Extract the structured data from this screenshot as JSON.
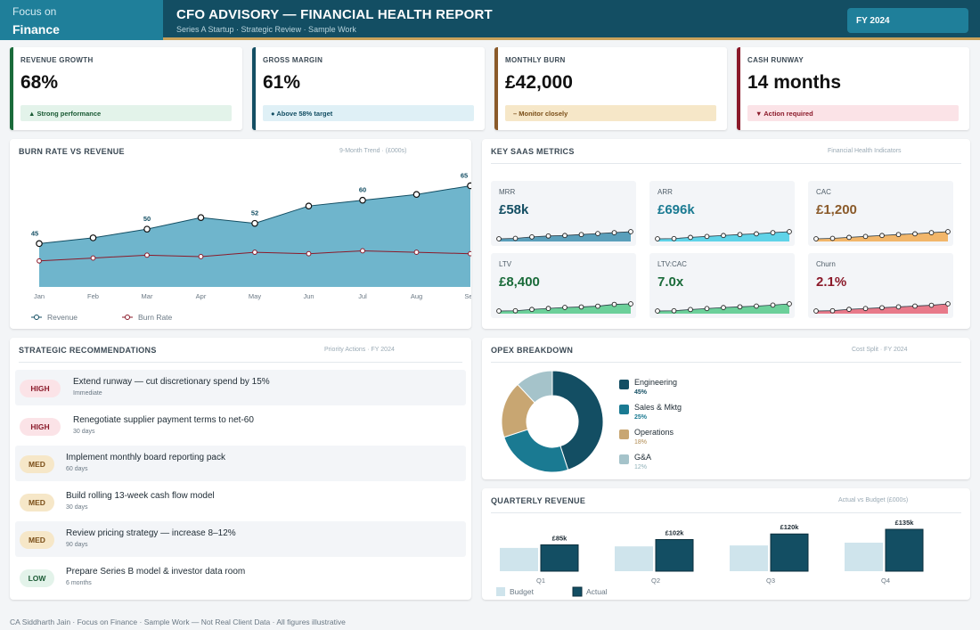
{
  "brand": {
    "top": "Focus on",
    "name": "Finance"
  },
  "header": {
    "title": "CFO ADVISORY — FINANCIAL HEALTH REPORT",
    "subtitle": "Series A Startup  ·  Strategic Review  ·  Sample Work",
    "fy_label": "FY 2024"
  },
  "kpis": [
    {
      "label": "REVENUE GROWTH",
      "value": "68%",
      "note": "▲  Strong performance",
      "accent": "#1a6b3a",
      "note_bg": "#e3f3ea",
      "note_color": "#1a5a34"
    },
    {
      "label": "GROSS MARGIN",
      "value": "61%",
      "note": "●  Above 58% target",
      "accent": "#134e63",
      "note_bg": "#dff0f6",
      "note_color": "#134e63"
    },
    {
      "label": "MONTHLY BURN",
      "value": "£42,000",
      "note": "–  Monitor closely",
      "accent": "#8a5a2a",
      "note_bg": "#f6e7c8",
      "note_color": "#7a4e18"
    },
    {
      "label": "CASH RUNWAY",
      "value": "14 months",
      "note": "▼  Action required",
      "accent": "#8b1a2a",
      "note_bg": "#fbe3e7",
      "note_color": "#8b1a2a"
    }
  ],
  "burn_panel": {
    "title": "BURN RATE VS REVENUE",
    "meta": "9-Month Trend  ·  (£000s)"
  },
  "chart_data": [
    {
      "type": "area",
      "title": "BURN RATE VS REVENUE",
      "x": [
        "Jan",
        "Feb",
        "Mar",
        "Apr",
        "May",
        "Jun",
        "Jul",
        "Aug",
        "Sep"
      ],
      "series": [
        {
          "name": "Revenue",
          "values": [
            45,
            47,
            50,
            54,
            52,
            58,
            60,
            62,
            65
          ],
          "color": "#6fb5cc"
        },
        {
          "name": "Burn Rate",
          "values": [
            39,
            40,
            41,
            40.5,
            42,
            41.5,
            42.5,
            42,
            41.5
          ],
          "color": "#8b1a2a"
        }
      ],
      "data_labels": {
        "Jan": "45",
        "Mar": "50",
        "May": "52",
        "Jul": "60",
        "Sep": "65"
      },
      "ylim": [
        30,
        67
      ],
      "legend": "bottom-left"
    },
    {
      "type": "pie",
      "title": "OPEX BREAKDOWN",
      "categories": [
        "Engineering",
        "Sales & Mktg",
        "Operations",
        "G&A"
      ],
      "values": [
        45,
        25,
        18,
        12
      ],
      "colors": [
        "#134e63",
        "#1a7a92",
        "#c8a672",
        "#a5c3ca"
      ]
    },
    {
      "type": "bar",
      "title": "QUARTERLY REVENUE",
      "categories": [
        "Q1",
        "Q2",
        "Q3",
        "Q4"
      ],
      "series": [
        {
          "name": "Budget",
          "values": [
            75,
            80,
            83,
            92
          ],
          "color": "#cfe4ec"
        },
        {
          "name": "Actual",
          "values": [
            85,
            102,
            120,
            135
          ],
          "color": "#134e63"
        }
      ],
      "data_labels": [
        "£85k",
        "£102k",
        "£120k",
        "£135k"
      ],
      "ylim": [
        0,
        150
      ],
      "legend": "bottom-left"
    }
  ],
  "saas_panel": {
    "title": "KEY SAAS METRICS",
    "meta": "Financial Health Indicators"
  },
  "metrics": [
    {
      "label": "MRR",
      "value": "£58k",
      "color": "#134e63",
      "spark": "#5a9fbb",
      "values": [
        1,
        1.2,
        1.8,
        2.2,
        2.4,
        2.8,
        3.2,
        3.6,
        4
      ]
    },
    {
      "label": "ARR",
      "value": "£696k",
      "color": "#1a7a92",
      "spark": "#5fd3e8",
      "values": [
        1,
        1.1,
        1.6,
        2,
        2.4,
        2.8,
        3.1,
        3.6,
        4
      ]
    },
    {
      "label": "CAC",
      "value": "£1,200",
      "color": "#8a5a2a",
      "spark": "#f2b66a",
      "values": [
        1,
        1.2,
        1.6,
        2,
        2.4,
        2.8,
        3.1,
        3.6,
        4
      ]
    },
    {
      "label": "LTV",
      "value": "£8,400",
      "color": "#1a6b3a",
      "spark": "#6cd09a",
      "values": [
        1,
        1.1,
        1.6,
        2,
        2.4,
        2.6,
        2.9,
        3.6,
        3.8
      ]
    },
    {
      "label": "LTV:CAC",
      "value": "7.0x",
      "color": "#1a6b3a",
      "spark": "#6cd09a",
      "values": [
        1,
        1.1,
        1.6,
        2,
        2.4,
        2.7,
        3,
        3.4,
        3.9
      ]
    },
    {
      "label": "Churn",
      "value": "2.1%",
      "color": "#8b1a2a",
      "spark": "#e87a8a",
      "values": [
        1,
        1.1,
        1.6,
        1.9,
        2.2,
        2.5,
        2.8,
        3.1,
        3.6
      ]
    }
  ],
  "rec_panel": {
    "title": "STRATEGIC RECOMMENDATIONS",
    "meta": "Priority Actions  ·  FY 2024"
  },
  "recommendations": [
    {
      "priority": "HIGH",
      "text": "Extend runway — cut discretionary spend by 15%",
      "timing": "Immediate"
    },
    {
      "priority": "HIGH",
      "text": "Renegotiate supplier payment terms to net-60",
      "timing": "30 days"
    },
    {
      "priority": "MED",
      "text": "Implement monthly board reporting pack",
      "timing": "60 days"
    },
    {
      "priority": "MED",
      "text": "Build rolling 13-week cash flow model",
      "timing": "30 days"
    },
    {
      "priority": "MED",
      "text": "Review pricing strategy — increase 8–12%",
      "timing": "90 days"
    },
    {
      "priority": "LOW",
      "text": "Prepare Series B model & investor data room",
      "timing": "6 months"
    }
  ],
  "priority_styles": {
    "HIGH": {
      "bg": "#fbe3e7",
      "color": "#8b1a2a"
    },
    "MED": {
      "bg": "#f6e7c8",
      "color": "#7a4e18"
    },
    "LOW": {
      "bg": "#e3f3ea",
      "color": "#1a5a34"
    }
  },
  "opex_panel": {
    "title": "OPEX BREAKDOWN",
    "meta": "Cost Split  ·  FY 2024"
  },
  "opex_legend": [
    {
      "name": "Engineering",
      "pct": "45%",
      "color": "#134e63",
      "pct_color": "#134e63"
    },
    {
      "name": "Sales & Mktg",
      "pct": "25%",
      "color": "#1a7a92",
      "pct_color": "#1a7a92"
    },
    {
      "name": "Operations",
      "pct": "18%",
      "color": "#c8a672",
      "pct_color": "#b08a50"
    },
    {
      "name": "G&A",
      "pct": "12%",
      "color": "#a5c3ca",
      "pct_color": "#8fb0b8"
    }
  ],
  "quarterly_panel": {
    "title": "QUARTERLY REVENUE",
    "meta": "Actual vs Budget  (£000s)"
  },
  "footer": "CA Siddharth Jain  ·  Focus on Finance  ·  Sample Work — Not Real Client Data  ·  All figures illustrative"
}
